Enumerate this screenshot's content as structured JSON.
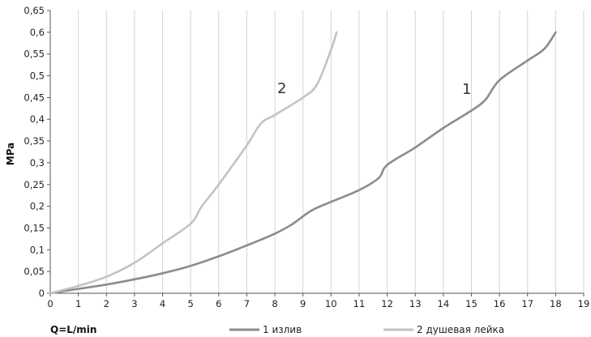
{
  "chart_data": {
    "type": "line",
    "title": "",
    "xlabel": "Q=L/min",
    "ylabel": "MPa",
    "xlim": [
      0,
      19
    ],
    "ylim": [
      0,
      0.65
    ],
    "x_ticks": [
      0,
      1,
      2,
      3,
      4,
      5,
      6,
      7,
      8,
      9,
      10,
      11,
      12,
      13,
      14,
      15,
      16,
      17,
      18,
      19
    ],
    "y_ticks": [
      "0",
      "0,05",
      "0,1",
      "0,15",
      "0,2",
      "0,25",
      "0,3",
      "0,35",
      "0,4",
      "0,45",
      "0,5",
      "0,55",
      "0,6",
      "0,65"
    ],
    "grid": "vertical",
    "legend_position": "bottom",
    "series": [
      {
        "name": "1 излив",
        "curve_label": "1",
        "color": "#8c8c8c",
        "x": [
          0,
          1,
          2,
          3,
          4,
          5,
          6,
          7,
          8,
          8.6,
          9.3,
          10,
          11,
          11.7,
          12,
          13,
          14,
          15,
          15.5,
          16,
          17,
          17.6,
          18
        ],
        "y": [
          0,
          0.01,
          0.02,
          0.032,
          0.046,
          0.063,
          0.085,
          0.11,
          0.137,
          0.158,
          0.19,
          0.21,
          0.237,
          0.265,
          0.295,
          0.335,
          0.38,
          0.42,
          0.445,
          0.49,
          0.535,
          0.562,
          0.6
        ]
      },
      {
        "name": "2 душевая лейка",
        "curve_label": "2",
        "color": "#c3c3c3",
        "x": [
          0,
          1,
          2,
          3,
          4,
          5,
          5.4,
          6,
          7,
          7.5,
          8,
          9,
          9.5,
          10,
          10.2
        ],
        "y": [
          0,
          0.017,
          0.038,
          0.07,
          0.115,
          0.16,
          0.2,
          0.25,
          0.34,
          0.39,
          0.41,
          0.45,
          0.48,
          0.56,
          0.6
        ]
      }
    ]
  }
}
